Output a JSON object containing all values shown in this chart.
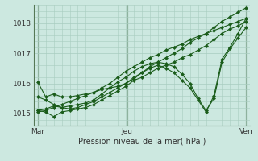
{
  "bg_color": "#cce8e0",
  "grid_color": "#a8ccbf",
  "line_color": "#1a5c1a",
  "marker_color": "#1a5c1a",
  "xlabel": "Pression niveau de la mer( hPa )",
  "xtick_labels": [
    "Mar",
    "Jeu",
    "Ven"
  ],
  "xtick_positions": [
    0.0,
    0.43,
    1.0
  ],
  "ylim": [
    1014.6,
    1018.6
  ],
  "ytick_positions": [
    1015,
    1016,
    1017,
    1018
  ],
  "series": [
    [
      1016.05,
      1015.55,
      1015.65,
      1015.55,
      1015.55,
      1015.6,
      1015.65,
      1015.7,
      1015.8,
      1015.85,
      1015.9,
      1016.0,
      1016.15,
      1016.35,
      1016.55,
      1016.7,
      1016.85,
      1017.0,
      1017.15,
      1017.35,
      1017.5,
      1017.65,
      1017.85,
      1018.05,
      1018.2,
      1018.35,
      1018.5
    ],
    [
      1015.1,
      1015.05,
      1014.9,
      1015.05,
      1015.1,
      1015.15,
      1015.2,
      1015.3,
      1015.45,
      1015.6,
      1015.75,
      1015.9,
      1016.1,
      1016.2,
      1016.35,
      1016.5,
      1016.6,
      1016.7,
      1016.85,
      1016.95,
      1017.1,
      1017.25,
      1017.45,
      1017.65,
      1017.8,
      1017.9,
      1018.05
    ],
    [
      1015.1,
      1015.15,
      1015.25,
      1015.2,
      1015.25,
      1015.3,
      1015.35,
      1015.45,
      1015.65,
      1015.85,
      1016.05,
      1016.2,
      1016.4,
      1016.55,
      1016.65,
      1016.7,
      1016.65,
      1016.55,
      1016.3,
      1016.0,
      1015.5,
      1015.1,
      1015.5,
      1016.7,
      1017.15,
      1017.5,
      1017.85
    ],
    [
      1015.05,
      1015.1,
      1015.2,
      1015.3,
      1015.4,
      1015.5,
      1015.6,
      1015.7,
      1015.85,
      1016.0,
      1016.2,
      1016.4,
      1016.55,
      1016.7,
      1016.85,
      1016.95,
      1017.1,
      1017.2,
      1017.3,
      1017.45,
      1017.55,
      1017.65,
      1017.75,
      1017.85,
      1017.95,
      1018.05,
      1018.15
    ],
    [
      1015.55,
      1015.45,
      1015.3,
      1015.2,
      1015.15,
      1015.2,
      1015.3,
      1015.4,
      1015.55,
      1015.7,
      1015.85,
      1016.0,
      1016.2,
      1016.35,
      1016.5,
      1016.6,
      1016.5,
      1016.35,
      1016.1,
      1015.85,
      1015.45,
      1015.05,
      1015.6,
      1016.8,
      1017.2,
      1017.65,
      1018.15
    ]
  ]
}
